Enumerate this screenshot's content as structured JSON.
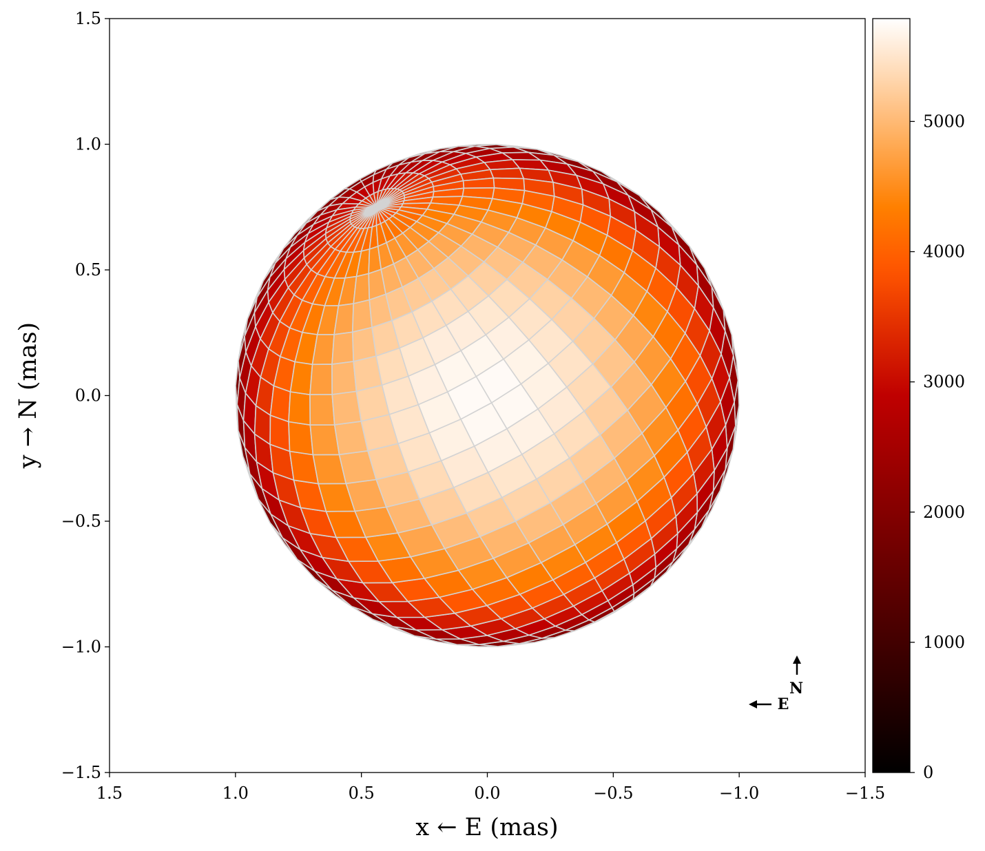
{
  "chart_data": {
    "type": "heatmap",
    "title": "",
    "xlabel": "x ← E (mas)",
    "ylabel": "y → N (mas)",
    "xlim": [
      1.5,
      -1.5
    ],
    "ylim": [
      -1.5,
      1.5
    ],
    "xticks": [
      1.5,
      1.0,
      0.5,
      0.0,
      -0.5,
      -1.0,
      -1.5
    ],
    "xtick_labels": [
      "1.5",
      "1.0",
      "0.5",
      "0.0",
      "−0.5",
      "−1.0",
      "−1.5"
    ],
    "yticks": [
      1.5,
      1.0,
      0.5,
      0.0,
      -0.5,
      -1.0,
      -1.5
    ],
    "ytick_labels": [
      "1.5",
      "1.0",
      "0.5",
      "0.0",
      "−0.5",
      "−1.0",
      "−1.5"
    ],
    "grid": false,
    "star": {
      "radius": 1.0,
      "center": [
        0.0,
        0.0
      ],
      "pole_projected": [
        0.44,
        0.75
      ],
      "temperature_center": 5750,
      "temperature_limb": 1500,
      "mesh_color": "#d3d3d3"
    },
    "colorbar": {
      "colormap": "gist_heat",
      "range": [
        0,
        5790
      ],
      "ticks": [
        0,
        1000,
        2000,
        3000,
        4000,
        5000
      ],
      "tick_labels": [
        "0",
        "1000",
        "2000",
        "3000",
        "4000",
        "5000"
      ],
      "position": "right"
    },
    "compass": {
      "north_label": "N",
      "east_label": "E"
    }
  }
}
